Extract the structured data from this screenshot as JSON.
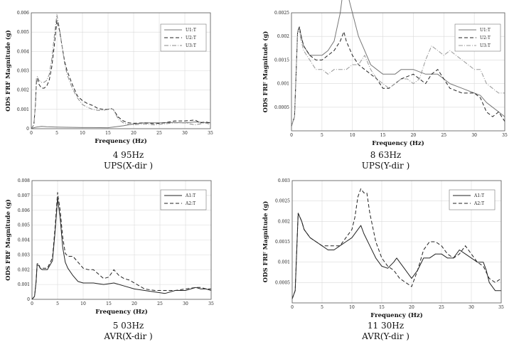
{
  "chart_data": [
    {
      "type": "line",
      "xlabel": "Frequency (Hz)",
      "ylabel": "ODS FRF Magnitude (g)",
      "xlim": [
        0,
        35
      ],
      "ylim": [
        0,
        0.006
      ],
      "xticks": [
        0,
        5,
        10,
        15,
        20,
        25,
        30,
        35
      ],
      "yticks": [
        0,
        0.001,
        0.002,
        0.003,
        0.004,
        0.005,
        0.006
      ],
      "ytick_labels": [
        "0",
        "0.001",
        "0.002",
        "0.003",
        "0.004",
        "0.005",
        "0.006"
      ],
      "legend_position": "top-right",
      "caption_line1": "4 95Hz",
      "caption_line2": "UPS(X-dir )",
      "series": [
        {
          "name": "U1:T",
          "style": "solid",
          "color": "#777777",
          "x": [
            0,
            0.5,
            1,
            1.5,
            2,
            3,
            5,
            8,
            10,
            12,
            15,
            18,
            20,
            22,
            25,
            28,
            30,
            32,
            35
          ],
          "y": [
            0,
            5e-05,
            8e-05,
            0.0001,
            0.00012,
            0.0001,
            8e-05,
            7e-05,
            6e-05,
            6e-05,
            5e-05,
            0.00015,
            0.00025,
            0.0003,
            0.0003,
            0.00032,
            0.0003,
            0.00035,
            0.0003
          ]
        },
        {
          "name": "U2:T",
          "style": "dashed",
          "color": "#222222",
          "x": [
            0,
            0.5,
            0.8,
            1,
            1.2,
            1.5,
            2,
            2.5,
            3,
            3.5,
            4,
            4.5,
            5,
            5.5,
            6,
            6.5,
            7,
            8,
            9,
            10,
            11,
            12,
            13,
            14,
            15,
            15.5,
            16,
            17,
            18,
            19,
            20,
            22,
            24,
            26,
            28,
            30,
            32,
            33,
            34,
            35
          ],
          "y": [
            0,
            0.0002,
            0.0012,
            0.0024,
            0.0026,
            0.0023,
            0.0021,
            0.0021,
            0.0022,
            0.0025,
            0.0032,
            0.0043,
            0.0056,
            0.0051,
            0.0043,
            0.0035,
            0.003,
            0.0023,
            0.0017,
            0.00145,
            0.0013,
            0.0012,
            0.00105,
            0.001,
            0.001,
            0.00105,
            0.001,
            0.0006,
            0.0004,
            0.0003,
            0.00028,
            0.0003,
            0.00026,
            0.0003,
            0.0004,
            0.0004,
            0.00045,
            0.0003,
            0.00035,
            0.0003
          ]
        },
        {
          "name": "U3:T",
          "style": "dashdot",
          "color": "#888888",
          "x": [
            0,
            0.5,
            0.8,
            1,
            1.2,
            1.5,
            2,
            2.5,
            3,
            3.5,
            4,
            4.5,
            5,
            5.5,
            6,
            6.5,
            7,
            8,
            9,
            10,
            11,
            12,
            13,
            14,
            15,
            15.5,
            16,
            17,
            18,
            19,
            20,
            22,
            24,
            26,
            28,
            30,
            32,
            33,
            34,
            35
          ],
          "y": [
            0,
            0.0002,
            0.0012,
            0.0026,
            0.0027,
            0.0025,
            0.0024,
            0.0024,
            0.0025,
            0.0028,
            0.0036,
            0.0048,
            0.0059,
            0.0052,
            0.0043,
            0.0034,
            0.0028,
            0.0021,
            0.0016,
            0.00125,
            0.0011,
            0.001,
            0.00095,
            0.00095,
            0.001,
            0.00105,
            0.001,
            0.0005,
            0.0003,
            0.00022,
            0.0002,
            0.00025,
            0.0002,
            0.00025,
            0.0003,
            0.0003,
            0.0002,
            0.00025,
            0.0003,
            0.00022
          ]
        }
      ]
    },
    {
      "type": "line",
      "xlabel": "Frequency (Hz)",
      "ylabel": "ODS FRF Magnitude (g)",
      "xlim": [
        0,
        35
      ],
      "ylim": [
        0,
        0.0025
      ],
      "xticks": [
        0,
        5,
        10,
        15,
        20,
        25,
        30,
        35
      ],
      "yticks": [
        0.0005,
        0.001,
        0.0015,
        0.002,
        0.0025
      ],
      "ytick_labels": [
        "0.0005",
        "0.001",
        "0.0015",
        "0.002",
        "0.0025"
      ],
      "legend_position": "top-right",
      "caption_line1": "8 63Hz",
      "caption_line2": "UPS(Y-dir )",
      "series": [
        {
          "name": "U1:T",
          "style": "solid",
          "color": "#777777",
          "x": [
            0,
            0.5,
            1,
            1.3,
            1.6,
            2,
            3,
            4,
            5,
            6,
            7,
            8,
            8.6,
            9,
            10,
            11,
            12,
            13,
            14,
            15,
            16,
            17,
            18,
            20,
            22,
            23,
            24,
            25,
            26,
            28,
            30,
            31,
            32,
            33,
            34,
            35
          ],
          "y": [
            0.0001,
            0.0003,
            0.0021,
            0.0022,
            0.002,
            0.0018,
            0.0016,
            0.0016,
            0.0016,
            0.0017,
            0.0019,
            0.0025,
            0.0031,
            0.003,
            0.0025,
            0.002,
            0.0017,
            0.0014,
            0.0013,
            0.0012,
            0.0012,
            0.0012,
            0.0013,
            0.0013,
            0.0012,
            0.0012,
            0.0012,
            0.0011,
            0.001,
            0.0009,
            0.0008,
            0.00075,
            0.0006,
            0.0005,
            0.0004,
            0.0003
          ]
        },
        {
          "name": "U2:T",
          "style": "dashed",
          "color": "#222222",
          "x": [
            0,
            0.5,
            1,
            1.3,
            1.6,
            2,
            3,
            4,
            5,
            6,
            7,
            8,
            8.6,
            9,
            10,
            11,
            12,
            13,
            14,
            15,
            16,
            17,
            18,
            20,
            22,
            23,
            24,
            25,
            26,
            28,
            30,
            31,
            32,
            33,
            34,
            35
          ],
          "y": [
            0.0001,
            0.0003,
            0.0021,
            0.0022,
            0.002,
            0.0018,
            0.0016,
            0.0015,
            0.0015,
            0.0016,
            0.0017,
            0.0019,
            0.0021,
            0.0019,
            0.0016,
            0.0014,
            0.0013,
            0.0012,
            0.0011,
            0.0009,
            0.0009,
            0.001,
            0.0011,
            0.0012,
            0.001,
            0.0012,
            0.0013,
            0.0011,
            0.0009,
            0.0008,
            0.0008,
            0.0007,
            0.0004,
            0.0003,
            0.0004,
            0.0002
          ]
        },
        {
          "name": "U3:T",
          "style": "dashdot",
          "color": "#999999",
          "x": [
            0,
            0.5,
            1,
            1.3,
            1.6,
            2,
            3,
            4,
            5,
            6,
            7,
            8,
            9,
            10,
            11,
            12,
            13,
            14,
            15,
            16,
            17,
            18,
            19,
            20,
            21,
            22,
            23,
            24,
            25,
            26,
            27,
            28,
            29,
            30,
            31,
            32,
            33,
            34,
            35
          ],
          "y": [
            0.0001,
            0.0003,
            0.0021,
            0.0021,
            0.0019,
            0.0017,
            0.0015,
            0.0013,
            0.0013,
            0.0012,
            0.0013,
            0.0013,
            0.0013,
            0.0014,
            0.0014,
            0.0016,
            0.0013,
            0.0011,
            0.001,
            0.0009,
            0.001,
            0.0011,
            0.0011,
            0.001,
            0.0011,
            0.0015,
            0.0018,
            0.0017,
            0.0016,
            0.0017,
            0.0016,
            0.0015,
            0.0014,
            0.0013,
            0.0013,
            0.001,
            0.0009,
            0.0008,
            0.0008
          ]
        }
      ]
    },
    {
      "type": "line",
      "xlabel": "Frequency (Hz)",
      "ylabel": "ODS FRF Magnitude (g)",
      "xlim": [
        0,
        35
      ],
      "ylim": [
        0,
        0.008
      ],
      "xticks": [
        0,
        5,
        10,
        15,
        20,
        25,
        30,
        35
      ],
      "yticks": [
        0,
        0.001,
        0.002,
        0.003,
        0.004,
        0.005,
        0.006,
        0.007,
        0.008
      ],
      "ytick_labels": [
        "0",
        "0.001",
        "0.002",
        "0.003",
        "0.004",
        "0.005",
        "0.006",
        "0.007",
        "0.008"
      ],
      "legend_position": "top-right",
      "caption_line1": "5 03Hz",
      "caption_line2": "AVR(X-dir )",
      "series": [
        {
          "name": "A1:T",
          "style": "solid",
          "color": "#222222",
          "x": [
            0,
            0.5,
            0.8,
            1,
            1.3,
            1.6,
            2,
            3,
            4,
            4.5,
            5,
            5.5,
            6,
            6.5,
            7,
            8,
            9,
            10,
            11,
            12,
            14,
            16,
            18,
            20,
            22,
            24,
            26,
            28,
            30,
            32,
            33,
            34,
            35
          ],
          "y": [
            0,
            0.0002,
            0.0012,
            0.0023,
            0.0023,
            0.0021,
            0.002,
            0.002,
            0.0026,
            0.0045,
            0.0068,
            0.0055,
            0.0035,
            0.0025,
            0.0021,
            0.0016,
            0.0012,
            0.0011,
            0.0011,
            0.0011,
            0.001,
            0.0011,
            0.0009,
            0.0007,
            0.0006,
            0.0005,
            0.0004,
            0.0006,
            0.0006,
            0.0008,
            0.0007,
            0.0007,
            0.0006
          ]
        },
        {
          "name": "A2:T",
          "style": "dashed",
          "color": "#222222",
          "x": [
            0,
            0.5,
            0.8,
            1,
            1.3,
            1.6,
            2,
            3,
            4,
            4.5,
            5,
            5.5,
            6,
            6.5,
            7,
            8,
            9,
            10,
            11,
            12,
            13,
            14,
            15,
            16,
            17,
            18,
            19,
            20,
            22,
            24,
            26,
            28,
            30,
            32,
            33,
            34,
            35
          ],
          "y": [
            0,
            0.0002,
            0.0012,
            0.0024,
            0.0024,
            0.0021,
            0.0021,
            0.0021,
            0.0028,
            0.0048,
            0.0072,
            0.006,
            0.0042,
            0.0031,
            0.0029,
            0.0029,
            0.0025,
            0.0021,
            0.002,
            0.002,
            0.0017,
            0.0014,
            0.0015,
            0.002,
            0.0016,
            0.0014,
            0.0013,
            0.0011,
            0.0007,
            0.0006,
            0.0006,
            0.0006,
            0.0007,
            0.0008,
            0.0008,
            0.0007,
            0.0007
          ]
        }
      ]
    },
    {
      "type": "line",
      "xlabel": "Frequency (Hz)",
      "ylabel": "ODS FRF Magnitude (g)",
      "xlim": [
        0,
        35
      ],
      "ylim": [
        0,
        0.003
      ],
      "xticks": [
        0,
        5,
        10,
        15,
        20,
        25,
        30,
        35
      ],
      "yticks": [
        0.0005,
        0.001,
        0.0015,
        0.002,
        0.0025,
        0.003
      ],
      "ytick_labels": [
        "0.0005",
        "0.001",
        "0.0015",
        "0.002",
        "0.0025",
        "0.003"
      ],
      "legend_position": "top-right",
      "caption_line1": "11 30Hz",
      "caption_line2": "AVR(Y-dir )",
      "series": [
        {
          "name": "A1:T",
          "style": "solid",
          "color": "#222222",
          "x": [
            0,
            0.5,
            1,
            1.3,
            1.6,
            2,
            3,
            4,
            5,
            6,
            7,
            8,
            9,
            10,
            11,
            11.5,
            12,
            13,
            14,
            15,
            16,
            17,
            17.5,
            18,
            19,
            20,
            21,
            22,
            23,
            24,
            25,
            26,
            27,
            28,
            29,
            30,
            31,
            32,
            32.5,
            33,
            34,
            35
          ],
          "y": [
            0.0001,
            0.0003,
            0.0022,
            0.0021,
            0.002,
            0.0018,
            0.0016,
            0.0015,
            0.0014,
            0.0013,
            0.0013,
            0.0014,
            0.0015,
            0.0016,
            0.0018,
            0.0019,
            0.0017,
            0.0014,
            0.0011,
            0.0009,
            0.00085,
            0.001,
            0.0011,
            0.001,
            0.0008,
            0.0006,
            0.0008,
            0.0011,
            0.0011,
            0.0012,
            0.0012,
            0.0011,
            0.0011,
            0.0013,
            0.0012,
            0.0011,
            0.001,
            0.001,
            0.0008,
            0.0005,
            0.0003,
            0.0003
          ]
        },
        {
          "name": "A2:T",
          "style": "dashed",
          "color": "#222222",
          "x": [
            0,
            0.5,
            1,
            1.3,
            1.6,
            2,
            3,
            4,
            5,
            6,
            7,
            8,
            9,
            10,
            10.5,
            11,
            11.5,
            12,
            12.5,
            13,
            14,
            15,
            16,
            17,
            18,
            19,
            20,
            21,
            22,
            23,
            24,
            25,
            26,
            27,
            28,
            29,
            30,
            31,
            32,
            33,
            34,
            35
          ],
          "y": [
            0.0001,
            0.0003,
            0.0022,
            0.0021,
            0.002,
            0.0018,
            0.0016,
            0.0015,
            0.0014,
            0.0014,
            0.0014,
            0.0014,
            0.0016,
            0.0018,
            0.0021,
            0.0026,
            0.0028,
            0.0027,
            0.0027,
            0.0022,
            0.0015,
            0.0011,
            0.0009,
            0.0008,
            0.0006,
            0.0005,
            0.0004,
            0.0008,
            0.0013,
            0.0015,
            0.0015,
            0.0014,
            0.0012,
            0.0011,
            0.0012,
            0.0014,
            0.0012,
            0.001,
            0.0009,
            0.0006,
            0.0005,
            0.0006
          ]
        }
      ]
    }
  ]
}
